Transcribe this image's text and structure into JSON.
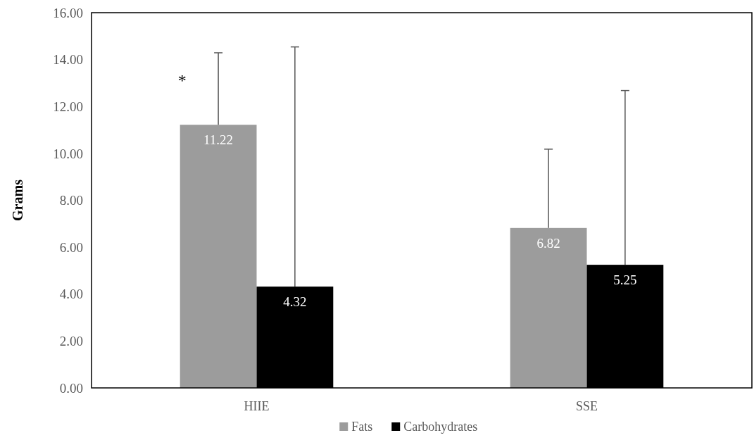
{
  "chart_data": {
    "type": "bar",
    "ylabel": "Grams",
    "categories": [
      "HIIE",
      "SSE"
    ],
    "series": [
      {
        "name": "Fats",
        "color": "#9c9c9c",
        "values": [
          11.22,
          6.82
        ],
        "errors": [
          3.07,
          3.36
        ]
      },
      {
        "name": "Carbohydrates",
        "color": "#000000",
        "values": [
          4.32,
          5.25
        ],
        "errors": [
          10.22,
          7.43
        ]
      }
    ],
    "ylim": [
      0,
      16
    ],
    "yticks": [
      {
        "value": 0,
        "label": "0.00"
      },
      {
        "value": 2,
        "label": "2.00"
      },
      {
        "value": 4,
        "label": "4.00"
      },
      {
        "value": 6,
        "label": "6.00"
      },
      {
        "value": 8,
        "label": "8.00"
      },
      {
        "value": 10,
        "label": "10.00"
      },
      {
        "value": 12,
        "label": "12.00"
      },
      {
        "value": 14,
        "label": "14.00"
      },
      {
        "value": 16,
        "label": "16.00"
      }
    ],
    "data_labels": true,
    "grid": false,
    "legend": "bottom",
    "annotations": [
      "*"
    ]
  }
}
